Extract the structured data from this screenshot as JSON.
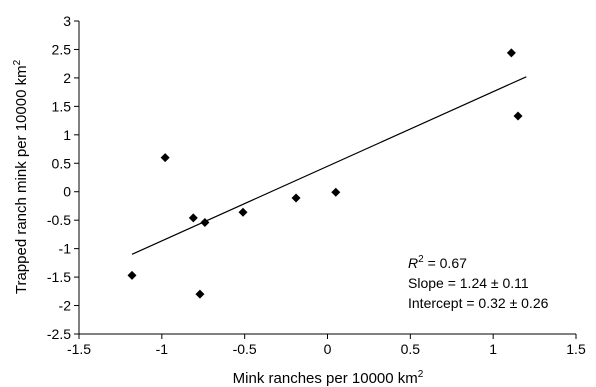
{
  "chart_data": {
    "type": "scatter",
    "title": "",
    "xlabel": "Mink ranches per 10000 km",
    "xlabel_sup": "2",
    "ylabel": "Trapped ranch mink per 10000 km",
    "ylabel_sup": "2",
    "xlim": [
      -1.5,
      1.5
    ],
    "ylim": [
      -2.5,
      3
    ],
    "x_ticks": [
      -1.5,
      -1,
      -0.5,
      0,
      0.5,
      1,
      1.5
    ],
    "x_tick_labels": [
      "-1.5",
      "-1",
      "-0.5",
      "0",
      "0.5",
      "1",
      "1.5"
    ],
    "y_ticks": [
      -2.5,
      -2,
      -1.5,
      -1,
      -0.5,
      0,
      0.5,
      1,
      1.5,
      2,
      2.5,
      3
    ],
    "y_tick_labels": [
      "-2.5",
      "-2",
      "-1.5",
      "-1",
      "-0.5",
      "0",
      "0.5",
      "1",
      "1.5",
      "2",
      "2.5",
      "3"
    ],
    "grid": false,
    "marker": "diamond",
    "marker_color": "#000000",
    "series": [
      {
        "points": [
          {
            "x": -1.18,
            "y": -1.47
          },
          {
            "x": -0.98,
            "y": 0.6
          },
          {
            "x": -0.81,
            "y": -0.46
          },
          {
            "x": -0.77,
            "y": -1.8
          },
          {
            "x": -0.74,
            "y": -0.54
          },
          {
            "x": -0.51,
            "y": -0.36
          },
          {
            "x": -0.19,
            "y": -0.11
          },
          {
            "x": 0.05,
            "y": -0.01
          },
          {
            "x": 1.11,
            "y": 2.44
          },
          {
            "x": 1.15,
            "y": 1.33
          }
        ]
      }
    ],
    "trendline": {
      "x1": -1.18,
      "y1": -1.1,
      "x2": 1.2,
      "y2": 2.02
    },
    "annotations": {
      "r2_symbol": "R",
      "r2_sup": "2",
      "r2_value": " = 0.67",
      "slope": "Slope = 1.24 ± 0.11",
      "intercept": "Intercept = 0.32 ± 0.26"
    }
  }
}
